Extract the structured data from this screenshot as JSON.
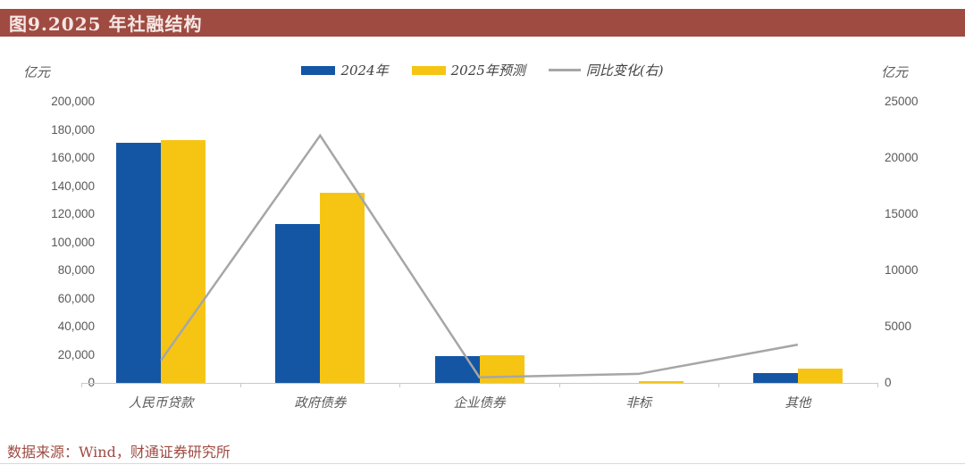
{
  "title": "图9.2025 年社融结构",
  "colors": {
    "titlebar_bg": "#9F4B42",
    "title_text": "#F5E7E4",
    "bar_2024": "#1456A4",
    "bar_2025": "#F6C514",
    "line_yoy": "#A6A6A6",
    "axis_text": "#595959",
    "axis_line": "#C8C8C8",
    "source_text": "#9F4B42"
  },
  "legend": [
    {
      "label": "2024年",
      "type": "bar"
    },
    {
      "label": "2025年预测",
      "type": "bar"
    },
    {
      "label": "同比变化(右)",
      "type": "line"
    }
  ],
  "left_axis": {
    "unit": "亿元",
    "tick_labels": [
      "200,000",
      "180,000",
      "160,000",
      "140,000",
      "120,000",
      "100,000",
      "80,000",
      "60,000",
      "40,000",
      "20,000",
      "0"
    ],
    "tick_values": [
      200000,
      180000,
      160000,
      140000,
      120000,
      100000,
      80000,
      60000,
      40000,
      20000,
      0
    ]
  },
  "right_axis": {
    "unit": "亿元",
    "tick_labels": [
      "25000",
      "20000",
      "15000",
      "10000",
      "5000",
      "0"
    ],
    "tick_values": [
      25000,
      20000,
      15000,
      10000,
      5000,
      0
    ]
  },
  "source": "数据来源：Wind，财通证券研究所",
  "chart_data": {
    "type": "bar",
    "title": "图9.2025 年社融结构",
    "categories": [
      "人民币贷款",
      "政府债券",
      "企业债券",
      "非标",
      "其他"
    ],
    "series": [
      {
        "name": "2024年",
        "type": "bar",
        "axis": "left",
        "values": [
          171000,
          113000,
          19000,
          0,
          7000
        ]
      },
      {
        "name": "2025年预测",
        "type": "bar",
        "axis": "left",
        "values": [
          173000,
          135000,
          20000,
          1000,
          10000
        ]
      },
      {
        "name": "同比变化(右)",
        "type": "line",
        "axis": "right",
        "values": [
          2000,
          22000,
          500,
          800,
          3400
        ]
      }
    ],
    "left_ylabel": "亿元",
    "right_ylabel": "亿元",
    "left_ylim": [
      0,
      200000
    ],
    "right_ylim": [
      0,
      25000
    ],
    "grid": false,
    "legend_position": "top-center"
  }
}
